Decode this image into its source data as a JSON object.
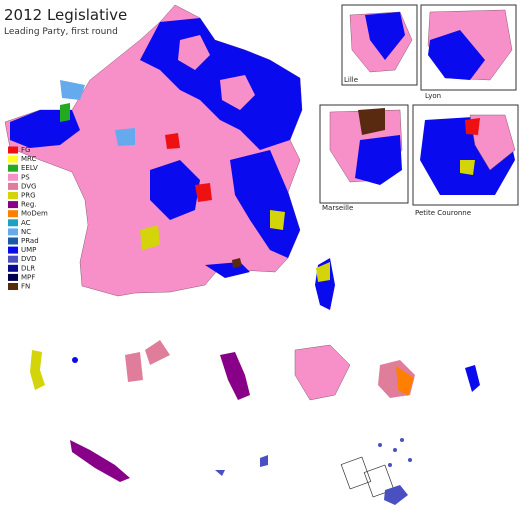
{
  "header": {
    "title": "2012 Legislative",
    "subtitle": "Leading Party, first round"
  },
  "legend": [
    {
      "label": "FG",
      "color": "#ee1111"
    },
    {
      "label": "MRC",
      "color": "#ffff22"
    },
    {
      "label": "EELV",
      "color": "#22aa22"
    },
    {
      "label": "PS",
      "color": "#f78fc8"
    },
    {
      "label": "DVG",
      "color": "#e07d9a"
    },
    {
      "label": "PRG",
      "color": "#d4d40a"
    },
    {
      "label": "Reg.",
      "color": "#880088"
    },
    {
      "label": "MoDem",
      "color": "#ff8000"
    },
    {
      "label": "AC",
      "color": "#20a0c0"
    },
    {
      "label": "NC",
      "color": "#66aaee"
    },
    {
      "label": "PRad",
      "color": "#1a5aa6"
    },
    {
      "label": "UMP",
      "color": "#0a0aee"
    },
    {
      "label": "DVD",
      "color": "#4a50c0"
    },
    {
      "label": "DLR",
      "color": "#0a0a90"
    },
    {
      "label": "MPF",
      "color": "#000050"
    },
    {
      "label": "FN",
      "color": "#5a2a10"
    }
  ],
  "insets": [
    {
      "label": "Lille"
    },
    {
      "label": "Lyon"
    },
    {
      "label": "Marseille"
    },
    {
      "label": "Petite Couronne"
    }
  ]
}
